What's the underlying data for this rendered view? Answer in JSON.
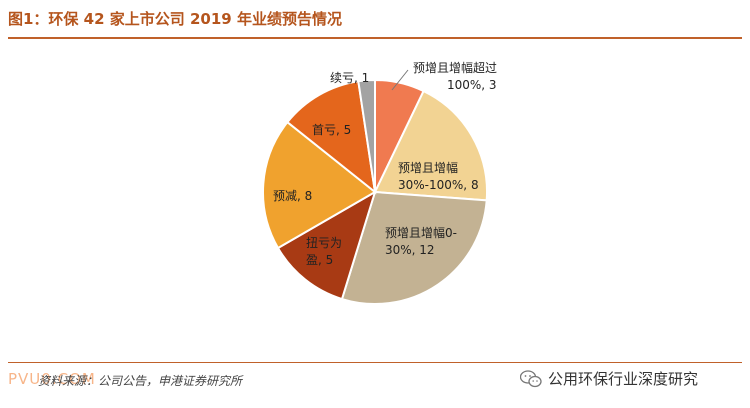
{
  "figure_title": "图1：环保 42 家上市公司 2019 年业绩预告情况",
  "source_text": "资料来源：公司公告，申港证券研究所",
  "watermark_left": "PVU0.COM",
  "wechat_account": "公用环保行业深度研究",
  "colors": {
    "title": "#b5551d",
    "rule": "#c0612a"
  },
  "chart_data": {
    "type": "pie",
    "title": "",
    "total": 42,
    "slices": [
      {
        "label_lines": [
          "预增且增幅超过",
          "100%, 3"
        ],
        "value": 3,
        "color": "#f07a50"
      },
      {
        "label_lines": [
          "预增且增幅",
          "30%-100%, 8"
        ],
        "value": 8,
        "color": "#f2d393"
      },
      {
        "label_lines": [
          "预增且增幅0-",
          "30%, 12"
        ],
        "value": 12,
        "color": "#c3b293"
      },
      {
        "label_lines": [
          "扭亏为",
          "盈, 5"
        ],
        "value": 5,
        "color": "#a83a14"
      },
      {
        "label_lines": [
          "预减, 8"
        ],
        "value": 8,
        "color": "#f0a22e"
      },
      {
        "label_lines": [
          "首亏, 5"
        ],
        "value": 5,
        "color": "#e4661c"
      },
      {
        "label_lines": [
          "续亏, 1"
        ],
        "value": 1,
        "color": "#a3a3a3"
      }
    ]
  }
}
